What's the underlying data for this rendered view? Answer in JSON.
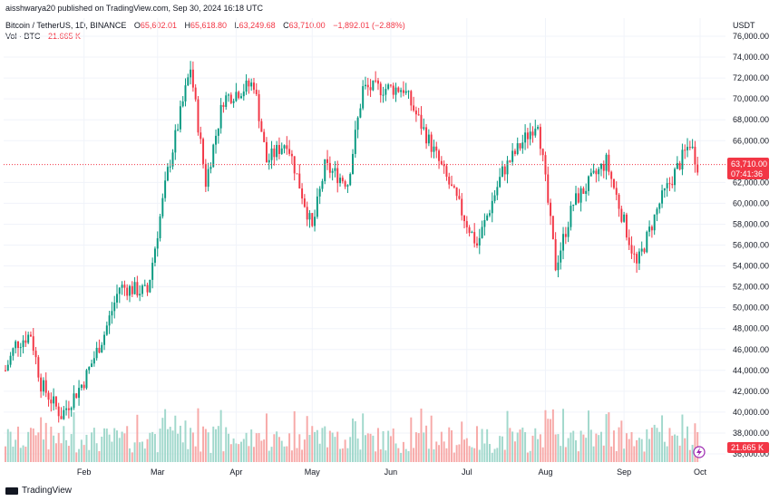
{
  "header": {
    "published": "aisshwarya20 published on TradingView.com, Sep 30, 2024 16:18 UTC",
    "symbol": "Bitcoin / TetherUS, 1D, BINANCE",
    "o_label": "O",
    "o_value": "65,602.01",
    "h_label": "H",
    "h_value": "65,618.80",
    "l_label": "L",
    "l_value": "63,249.68",
    "c_label": "C",
    "c_value": "63,710.00",
    "change": "−1,892.01 (−2.88%)",
    "vol_label": "Vol · BTC",
    "vol_value": "21.665 K"
  },
  "price_axis": {
    "currency": "USDT",
    "ticks": [
      "76,000.00",
      "74,000.00",
      "72,000.00",
      "70,000.00",
      "68,000.00",
      "66,000.00",
      "62,000.00",
      "60,000.00",
      "58,000.00",
      "56,000.00",
      "54,000.00",
      "52,000.00",
      "50,000.00",
      "48,000.00",
      "46,000.00",
      "44,000.00",
      "42,000.00",
      "40,000.00",
      "38,000.00",
      "36,000.00"
    ],
    "last_price": "63,710.00",
    "countdown": "07:41:36",
    "volume_badge": "21.665 K"
  },
  "time_axis": {
    "ticks": [
      "Feb",
      "Mar",
      "Apr",
      "May",
      "Jun",
      "Jul",
      "Aug",
      "Sep",
      "Oct"
    ]
  },
  "footer": {
    "brand": "TradingView"
  },
  "colors": {
    "up": "#089981",
    "down": "#f23645",
    "up_vol": "#a1d8cc",
    "down_vol": "#f7a9a8"
  },
  "chart_data": {
    "type": "candlestick",
    "symbol": "Bitcoin / TetherUS",
    "interval": "1D",
    "exchange": "BINANCE",
    "currency": "USDT",
    "ylim": [
      35000,
      77000
    ],
    "x_range": [
      "2024-01-01",
      "2024-10-01"
    ],
    "grid": true,
    "last_close": 63710.0,
    "monthly_path": [
      {
        "x": "2024-01-01",
        "y": 44000
      },
      {
        "x": "2024-01-05",
        "y": 46500
      },
      {
        "x": "2024-01-11",
        "y": 47500
      },
      {
        "x": "2024-01-15",
        "y": 42700
      },
      {
        "x": "2024-01-23",
        "y": 39700
      },
      {
        "x": "2024-02-01",
        "y": 43000
      },
      {
        "x": "2024-02-09",
        "y": 47500
      },
      {
        "x": "2024-02-15",
        "y": 52000
      },
      {
        "x": "2024-02-26",
        "y": 51500
      },
      {
        "x": "2024-03-05",
        "y": 63000
      },
      {
        "x": "2024-03-14",
        "y": 73000
      },
      {
        "x": "2024-03-20",
        "y": 62000
      },
      {
        "x": "2024-03-27",
        "y": 70000
      },
      {
        "x": "2024-04-08",
        "y": 71500
      },
      {
        "x": "2024-04-13",
        "y": 64000
      },
      {
        "x": "2024-04-21",
        "y": 66000
      },
      {
        "x": "2024-05-01",
        "y": 57500
      },
      {
        "x": "2024-05-06",
        "y": 63500
      },
      {
        "x": "2024-05-15",
        "y": 62000
      },
      {
        "x": "2024-05-21",
        "y": 71000
      },
      {
        "x": "2024-06-06",
        "y": 71000
      },
      {
        "x": "2024-06-18",
        "y": 65000
      },
      {
        "x": "2024-07-05",
        "y": 56000
      },
      {
        "x": "2024-07-15",
        "y": 63000
      },
      {
        "x": "2024-07-29",
        "y": 68000
      },
      {
        "x": "2024-08-05",
        "y": 54000
      },
      {
        "x": "2024-08-12",
        "y": 60000
      },
      {
        "x": "2024-08-25",
        "y": 64000
      },
      {
        "x": "2024-09-06",
        "y": 54000
      },
      {
        "x": "2024-09-15",
        "y": 60000
      },
      {
        "x": "2024-09-27",
        "y": 65800
      },
      {
        "x": "2024-09-30",
        "y": 63710
      }
    ]
  }
}
